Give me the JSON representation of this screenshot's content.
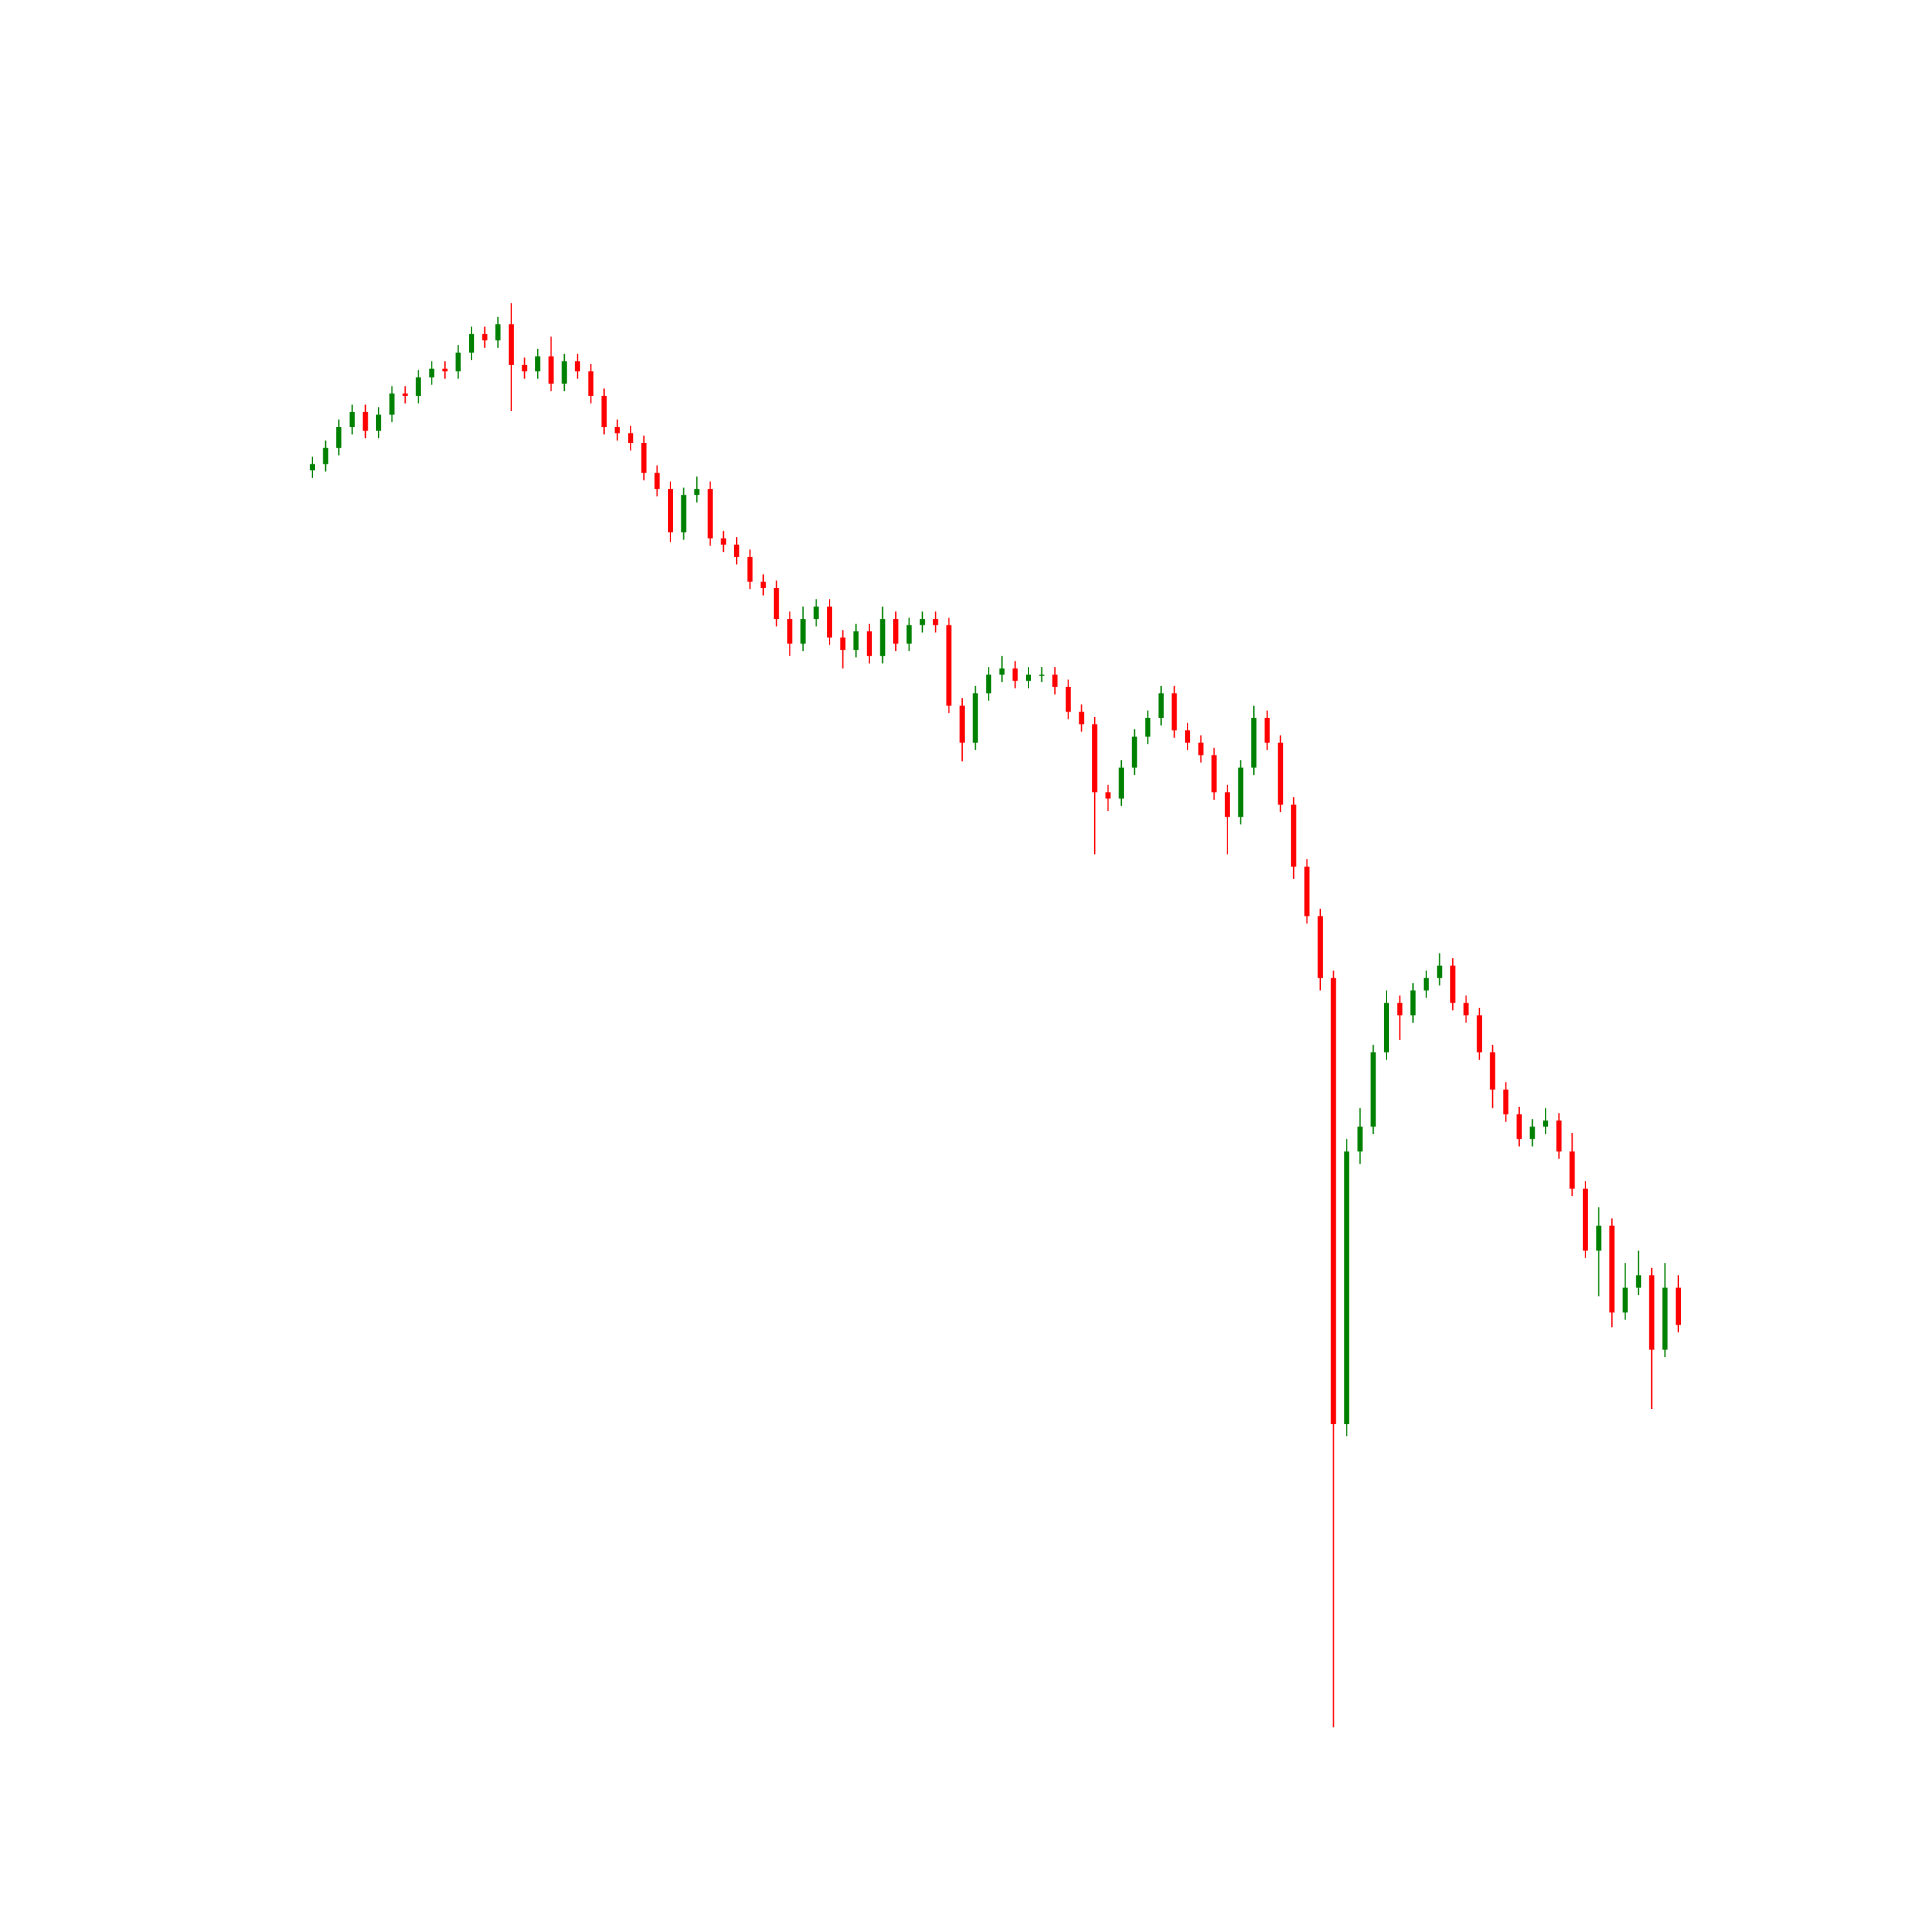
{
  "chart_data": {
    "type": "candlestick",
    "up_color": "#008000",
    "down_color": "#ff0000",
    "ylim": [
      150,
      1450
    ],
    "open": [
      1220,
      1225,
      1238,
      1255,
      1267,
      1252,
      1265,
      1282,
      1280,
      1295,
      1302,
      1300,
      1315,
      1330,
      1325,
      1338,
      1305,
      1300,
      1312,
      1290,
      1308,
      1300,
      1280,
      1255,
      1250,
      1242,
      1218,
      1205,
      1170,
      1200,
      1205,
      1165,
      1160,
      1150,
      1130,
      1125,
      1100,
      1080,
      1100,
      1110,
      1085,
      1075,
      1090,
      1070,
      1100,
      1080,
      1095,
      1100,
      1095,
      1030,
      1000,
      1040,
      1055,
      1060,
      1050,
      1055,
      1055,
      1045,
      1025,
      1015,
      960,
      955,
      980,
      1005,
      1020,
      1040,
      1010,
      1000,
      990,
      960,
      940,
      980,
      1020,
      1000,
      950,
      900,
      860,
      810,
      450,
      670,
      690,
      750,
      790,
      780,
      800,
      810,
      820,
      790,
      780,
      750,
      720,
      700,
      680,
      690,
      695,
      670,
      640,
      590,
      610,
      540,
      560,
      570,
      510,
      560
    ],
    "high": [
      1231,
      1244,
      1261,
      1273,
      1273,
      1271,
      1288,
      1288,
      1301,
      1308,
      1308,
      1321,
      1336,
      1336,
      1344,
      1355,
      1311,
      1318,
      1328,
      1314,
      1314,
      1306,
      1286,
      1261,
      1256,
      1248,
      1224,
      1211,
      1206,
      1215,
      1211,
      1171,
      1166,
      1156,
      1136,
      1131,
      1106,
      1110,
      1116,
      1116,
      1091,
      1096,
      1096,
      1110,
      1106,
      1101,
      1106,
      1106,
      1101,
      1036,
      1046,
      1061,
      1070,
      1066,
      1061,
      1061,
      1061,
      1051,
      1031,
      1021,
      966,
      986,
      1011,
      1026,
      1046,
      1046,
      1016,
      1006,
      996,
      966,
      986,
      1030,
      1026,
      1006,
      956,
      906,
      866,
      816,
      680,
      705,
      756,
      800,
      796,
      806,
      816,
      830,
      826,
      796,
      786,
      756,
      726,
      706,
      696,
      705,
      701,
      685,
      646,
      625,
      616,
      580,
      590,
      576,
      580,
      570
    ],
    "low": [
      1214,
      1219,
      1232,
      1249,
      1246,
      1246,
      1259,
      1274,
      1274,
      1289,
      1294,
      1294,
      1309,
      1319,
      1319,
      1268,
      1294,
      1294,
      1284,
      1284,
      1294,
      1274,
      1249,
      1244,
      1236,
      1212,
      1199,
      1162,
      1164,
      1194,
      1159,
      1154,
      1144,
      1124,
      1119,
      1094,
      1070,
      1074,
      1094,
      1079,
      1060,
      1069,
      1064,
      1064,
      1074,
      1074,
      1089,
      1089,
      1024,
      985,
      994,
      1034,
      1049,
      1044,
      1044,
      1049,
      1039,
      1019,
      1009,
      910,
      945,
      949,
      974,
      999,
      1014,
      1004,
      994,
      984,
      954,
      910,
      934,
      974,
      994,
      944,
      890,
      854,
      800,
      205,
      440,
      660,
      684,
      744,
      760,
      774,
      794,
      804,
      784,
      774,
      744,
      705,
      694,
      674,
      674,
      684,
      664,
      634,
      584,
      553,
      528,
      534,
      554,
      462,
      504,
      524
    ],
    "close": [
      1225,
      1238,
      1255,
      1267,
      1252,
      1265,
      1282,
      1280,
      1295,
      1302,
      1300,
      1315,
      1330,
      1325,
      1338,
      1305,
      1300,
      1312,
      1290,
      1308,
      1300,
      1280,
      1255,
      1250,
      1242,
      1218,
      1205,
      1170,
      1200,
      1205,
      1165,
      1160,
      1150,
      1130,
      1125,
      1100,
      1080,
      1100,
      1110,
      1085,
      1075,
      1090,
      1070,
      1100,
      1080,
      1095,
      1100,
      1095,
      1030,
      1000,
      1040,
      1055,
      1060,
      1050,
      1055,
      1055,
      1045,
      1025,
      1015,
      960,
      955,
      980,
      1005,
      1020,
      1040,
      1010,
      1000,
      990,
      960,
      940,
      980,
      1020,
      1000,
      950,
      900,
      860,
      810,
      450,
      670,
      690,
      750,
      790,
      780,
      800,
      810,
      820,
      790,
      780,
      750,
      720,
      700,
      680,
      690,
      695,
      670,
      640,
      590,
      610,
      540,
      560,
      570,
      510,
      560,
      530
    ]
  }
}
